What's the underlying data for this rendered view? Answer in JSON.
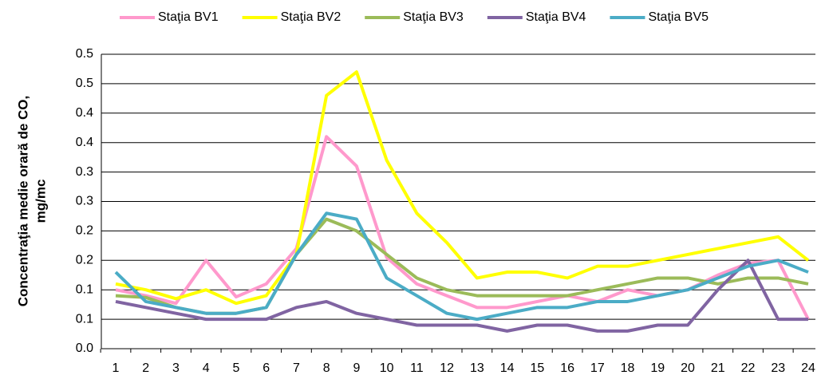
{
  "chart_data": {
    "type": "line",
    "ylabel": [
      "Concentraţia medie orară de CO,",
      "mg/mc"
    ],
    "categories": [
      "1",
      "2",
      "3",
      "4",
      "5",
      "6",
      "7",
      "8",
      "9",
      "10",
      "11",
      "12",
      "13",
      "14",
      "15",
      "16",
      "17",
      "18",
      "19",
      "20",
      "21",
      "22",
      "23",
      "24"
    ],
    "series": [
      {
        "name": "Staţia BV1",
        "color": "#ff99cc",
        "values": [
          0.1,
          0.09,
          0.077,
          0.15,
          0.088,
          0.11,
          0.17,
          0.36,
          0.31,
          0.155,
          0.11,
          0.09,
          0.07,
          0.07,
          0.08,
          0.09,
          0.08,
          0.1,
          0.09,
          0.1,
          0.125,
          0.145,
          0.15,
          0.05
        ]
      },
      {
        "name": "Staţia BV2",
        "color": "#ffff00",
        "values": [
          0.11,
          0.1,
          0.085,
          0.1,
          0.077,
          0.09,
          0.16,
          0.43,
          0.47,
          0.32,
          0.23,
          0.18,
          0.12,
          0.13,
          0.13,
          0.12,
          0.14,
          0.14,
          0.15,
          0.16,
          0.17,
          0.18,
          0.19,
          0.15
        ]
      },
      {
        "name": "Staţia BV3",
        "color": "#9bbb59",
        "values": [
          0.09,
          0.087,
          0.07,
          0.06,
          0.06,
          0.07,
          0.16,
          0.22,
          0.2,
          0.16,
          0.12,
          0.1,
          0.09,
          0.09,
          0.09,
          0.09,
          0.1,
          0.11,
          0.12,
          0.12,
          0.11,
          0.12,
          0.12,
          0.11
        ]
      },
      {
        "name": "Staţia BV4",
        "color": "#8064a2",
        "values": [
          0.08,
          0.07,
          0.06,
          0.05,
          0.05,
          0.05,
          0.07,
          0.08,
          0.06,
          0.05,
          0.04,
          0.04,
          0.04,
          0.03,
          0.04,
          0.04,
          0.03,
          0.03,
          0.04,
          0.04,
          0.1,
          0.15,
          0.05,
          0.05
        ]
      },
      {
        "name": "Staţia BV5",
        "color": "#4bacc6",
        "values": [
          0.13,
          0.08,
          0.07,
          0.06,
          0.06,
          0.07,
          0.16,
          0.23,
          0.22,
          0.12,
          0.09,
          0.06,
          0.05,
          0.06,
          0.07,
          0.07,
          0.08,
          0.08,
          0.09,
          0.1,
          0.12,
          0.14,
          0.15,
          0.13
        ]
      }
    ],
    "ylim": [
      0,
      0.5
    ],
    "yticks": [
      {
        "value": 0,
        "label": "0.0"
      },
      {
        "value": 0.05,
        "label": "0.1"
      },
      {
        "value": 0.1,
        "label": "0.1"
      },
      {
        "value": 0.15,
        "label": "0.2"
      },
      {
        "value": 0.2,
        "label": "0.2"
      },
      {
        "value": 0.25,
        "label": "0.3"
      },
      {
        "value": 0.3,
        "label": "0.3"
      },
      {
        "value": 0.35,
        "label": "0.4"
      },
      {
        "value": 0.4,
        "label": "0.4"
      },
      {
        "value": 0.45,
        "label": "0.5"
      },
      {
        "value": 0.5,
        "label": "0.5"
      }
    ],
    "grid": true,
    "legend": "top"
  }
}
